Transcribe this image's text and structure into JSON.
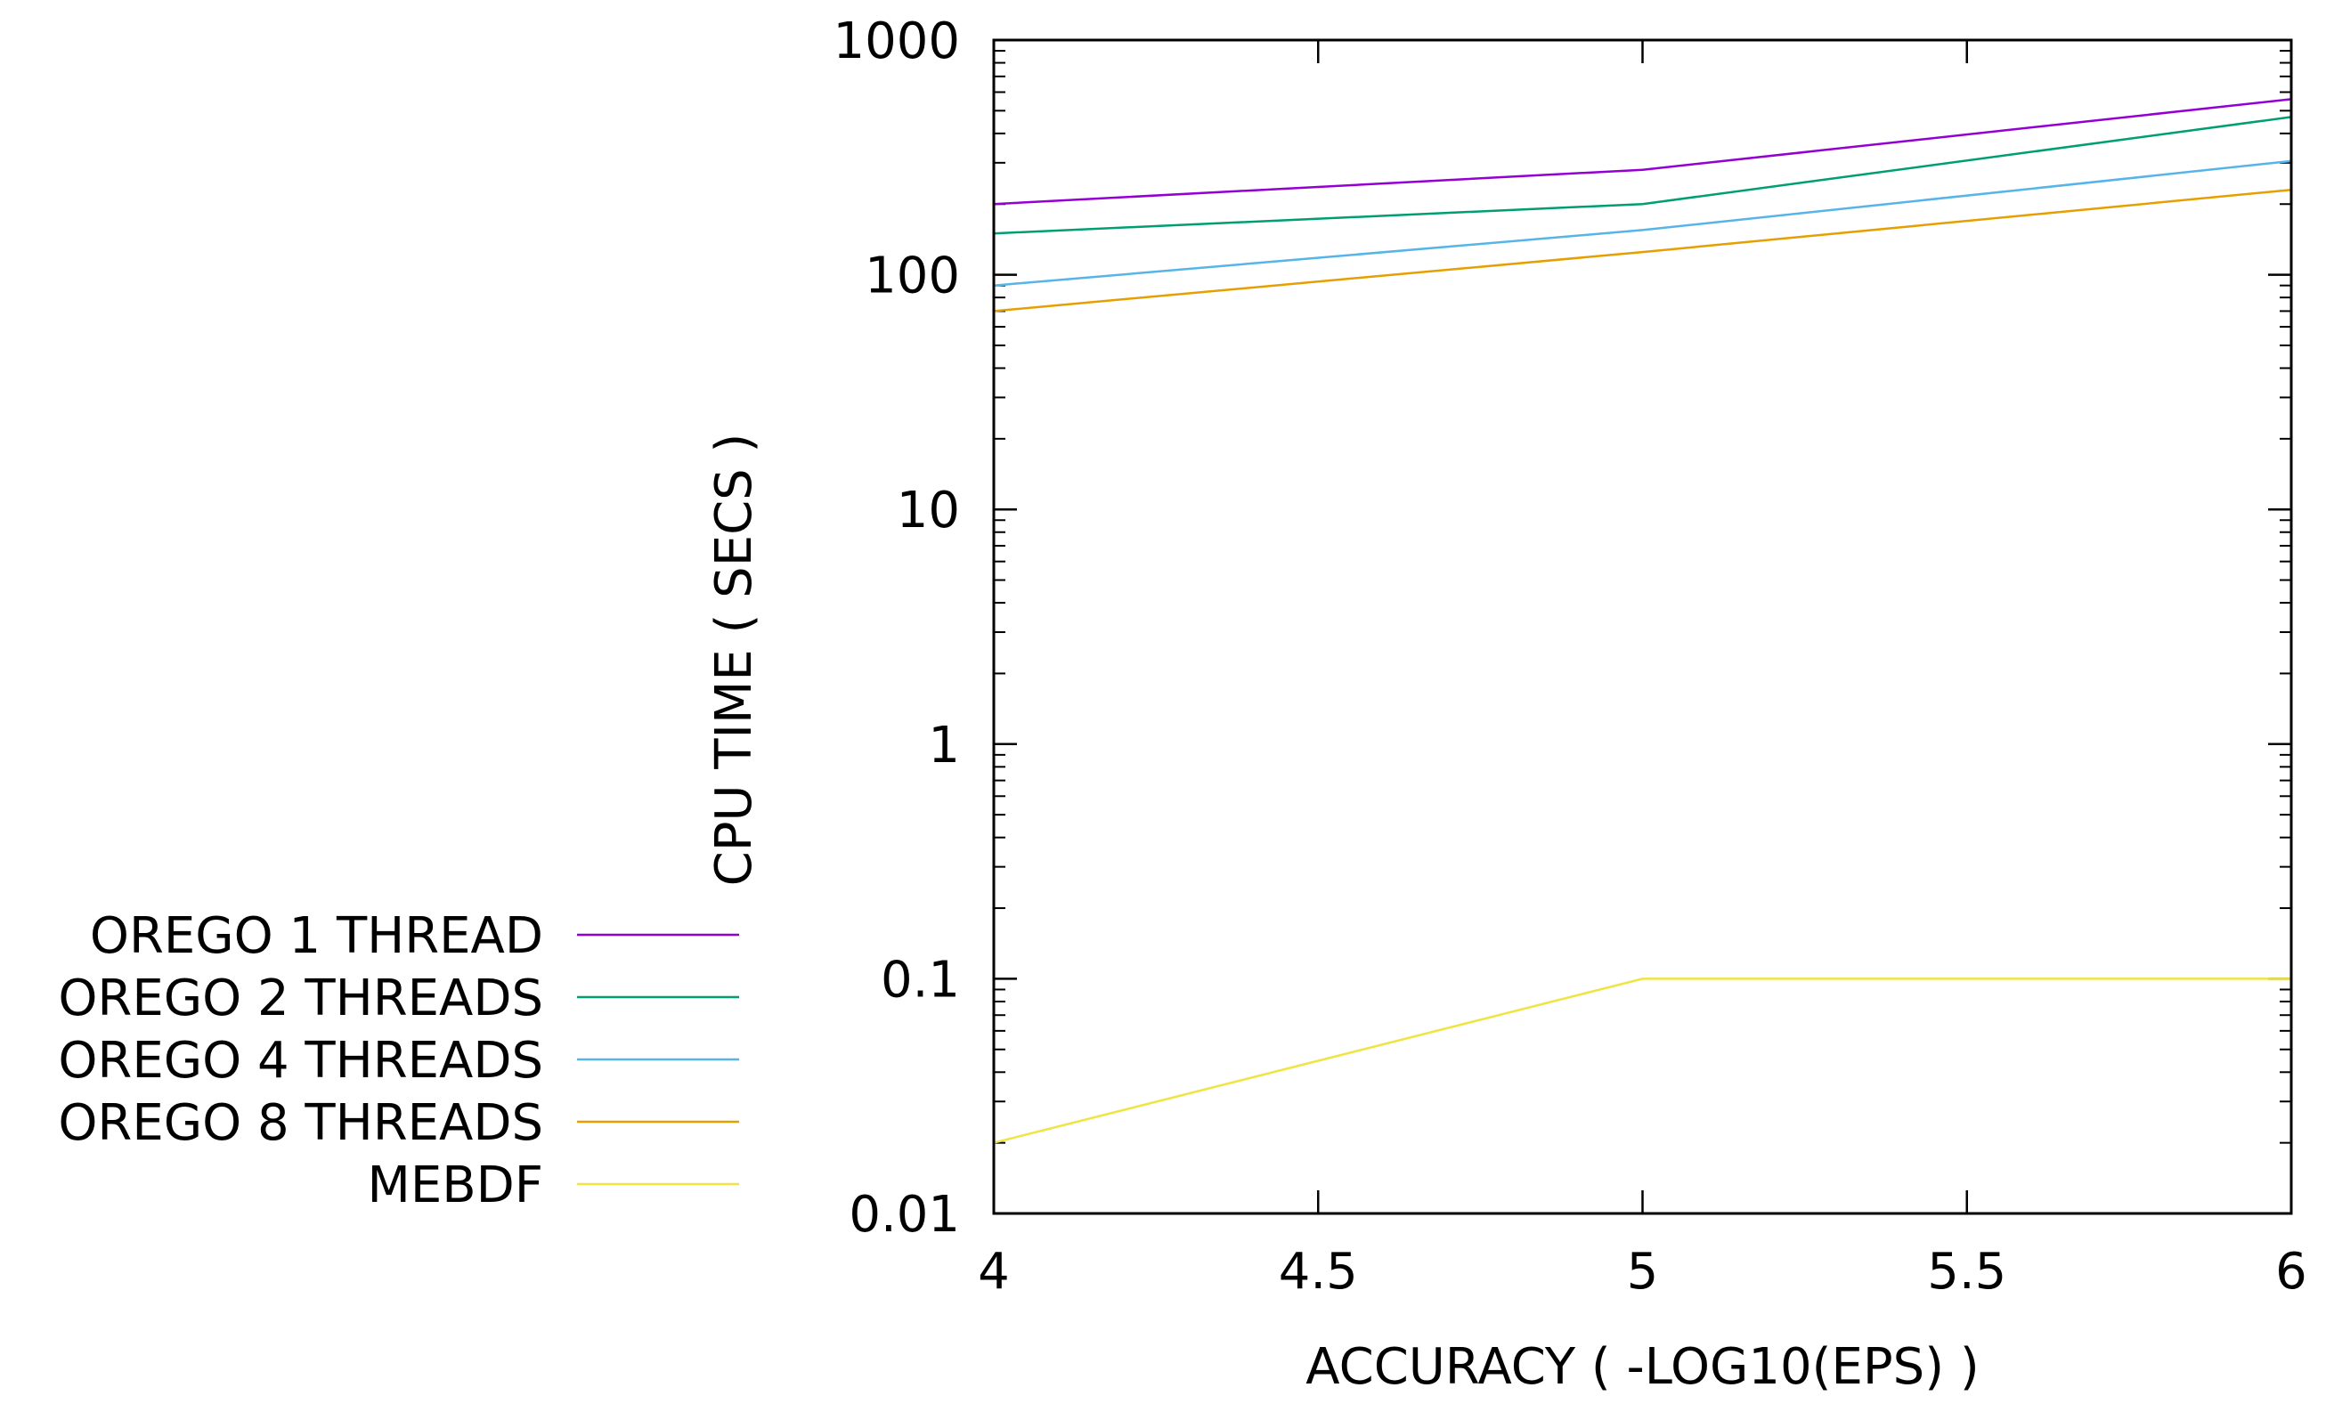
{
  "chart_data": {
    "type": "line",
    "title": "",
    "xlabel": "ACCURACY ( -LOG10(EPS) )",
    "ylabel": "CPU TIME ( SECS )",
    "xlim": [
      4,
      6
    ],
    "ylim": [
      0.01,
      1000
    ],
    "yscale": "log",
    "grid": false,
    "legend_position": "left",
    "x_ticks": [
      4,
      4.5,
      5,
      5.5,
      6
    ],
    "x_tick_labels": [
      "4",
      "4.5",
      "5",
      "5.5",
      "6"
    ],
    "y_ticks": [
      0.01,
      0.1,
      1,
      10,
      100,
      1000
    ],
    "y_tick_labels": [
      "0.01",
      "0.1",
      "1",
      "10",
      "100",
      "1000"
    ],
    "x": [
      4,
      5,
      6
    ],
    "series": [
      {
        "name": "OREGO 1 THREAD",
        "color": "#9400d3",
        "values": [
          200,
          280,
          560
        ]
      },
      {
        "name": "OREGO 2 THREADS",
        "color": "#009e73",
        "values": [
          150,
          200,
          470
        ]
      },
      {
        "name": "OREGO 4 THREADS",
        "color": "#56b4e9",
        "values": [
          90,
          155,
          305
        ]
      },
      {
        "name": "OREGO 8 THREADS",
        "color": "#e69f00",
        "values": [
          70,
          125,
          230
        ]
      },
      {
        "name": "MEBDF",
        "color": "#f0e442",
        "values": [
          0.02,
          0.1,
          0.1
        ]
      }
    ]
  }
}
